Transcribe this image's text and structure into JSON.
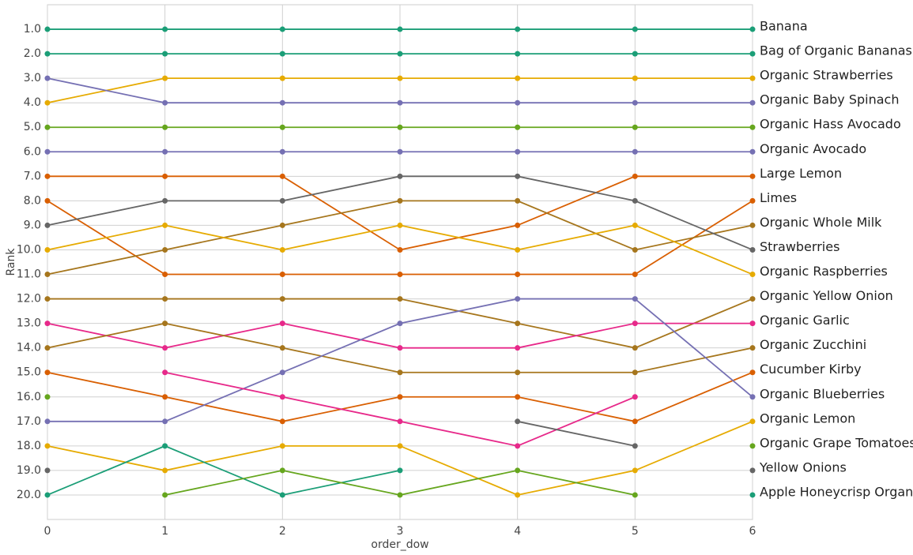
{
  "chart_data": {
    "type": "line",
    "xlabel": "order_dow",
    "ylabel": "Rank",
    "x": [
      0,
      1,
      2,
      3,
      4,
      5,
      6
    ],
    "xlim": [
      0,
      6
    ],
    "xticks": [
      0,
      1,
      2,
      3,
      4,
      5,
      6
    ],
    "ylim": [
      21,
      0
    ],
    "yticks": [
      {
        "value": 1,
        "label": "1.0"
      },
      {
        "value": 2,
        "label": "2.0"
      },
      {
        "value": 3,
        "label": "3.0"
      },
      {
        "value": 4,
        "label": "4.0"
      },
      {
        "value": 5,
        "label": "5.0"
      },
      {
        "value": 6,
        "label": "6.0"
      },
      {
        "value": 7,
        "label": "7.0"
      },
      {
        "value": 8,
        "label": "8.0"
      },
      {
        "value": 9,
        "label": "9.0"
      },
      {
        "value": 10,
        "label": "10.0"
      },
      {
        "value": 11,
        "label": "11.0"
      },
      {
        "value": 12,
        "label": "12.0"
      },
      {
        "value": 13,
        "label": "13.0"
      },
      {
        "value": 14,
        "label": "14.0"
      },
      {
        "value": 15,
        "label": "15.0"
      },
      {
        "value": 16,
        "label": "16.0"
      },
      {
        "value": 17,
        "label": "17.0"
      },
      {
        "value": 18,
        "label": "18.0"
      },
      {
        "value": 19,
        "label": "19.0"
      },
      {
        "value": 20,
        "label": "20.0"
      }
    ],
    "grid": true,
    "series": [
      {
        "name": "Banana",
        "color": "#1b9e77",
        "values": [
          1,
          1,
          1,
          1,
          1,
          1,
          1
        ]
      },
      {
        "name": "Bag of Organic Bananas",
        "color": "#1b9e77",
        "values": [
          2,
          2,
          2,
          2,
          2,
          2,
          2
        ]
      },
      {
        "name": "Organic Strawberries",
        "color": "#e6ab02",
        "values": [
          4,
          3,
          3,
          3,
          3,
          3,
          3
        ]
      },
      {
        "name": "Organic Baby Spinach",
        "color": "#7570b3",
        "values": [
          3,
          4,
          4,
          4,
          4,
          4,
          4
        ]
      },
      {
        "name": "Organic Hass Avocado",
        "color": "#66a61e",
        "values": [
          5,
          5,
          5,
          5,
          5,
          5,
          5
        ]
      },
      {
        "name": "Organic Avocado",
        "color": "#7570b3",
        "values": [
          6,
          6,
          6,
          6,
          6,
          6,
          6
        ]
      },
      {
        "name": "Large Lemon",
        "color": "#d95f02",
        "values": [
          7,
          7,
          7,
          10,
          9,
          7,
          7
        ]
      },
      {
        "name": "Limes",
        "color": "#d95f02",
        "values": [
          8,
          11,
          11,
          11,
          11,
          11,
          8
        ]
      },
      {
        "name": "Organic Whole Milk",
        "color": "#a6761d",
        "values": [
          11,
          10,
          9,
          8,
          8,
          10,
          9
        ]
      },
      {
        "name": "Strawberries",
        "color": "#666666",
        "values": [
          9,
          8,
          8,
          7,
          7,
          8,
          10
        ]
      },
      {
        "name": "Organic Raspberries",
        "color": "#e6ab02",
        "values": [
          10,
          9,
          10,
          9,
          10,
          9,
          11
        ]
      },
      {
        "name": "Organic Yellow Onion",
        "color": "#a6761d",
        "values": [
          12,
          12,
          12,
          12,
          13,
          14,
          12
        ]
      },
      {
        "name": "Organic Garlic",
        "color": "#e7298a",
        "values": [
          13,
          14,
          13,
          14,
          14,
          13,
          13
        ]
      },
      {
        "name": "Organic Zucchini",
        "color": "#a6761d",
        "values": [
          14,
          13,
          14,
          15,
          15,
          15,
          14
        ]
      },
      {
        "name": "Cucumber Kirby",
        "color": "#d95f02",
        "values": [
          15,
          16,
          17,
          16,
          16,
          17,
          15
        ]
      },
      {
        "name": "Organic Blueberries",
        "color": "#7570b3",
        "values": [
          17,
          17,
          15,
          13,
          12,
          12,
          16
        ]
      },
      {
        "name": "Organic Lemon",
        "color": "#e6ab02",
        "values": [
          18,
          19,
          18,
          18,
          20,
          19,
          17
        ]
      },
      {
        "name": "Organic Grape Tomatoes",
        "color": "#66a61e",
        "values": [
          16,
          null,
          null,
          null,
          null,
          null,
          18
        ]
      },
      {
        "name": "Yellow Onions",
        "color": "#666666",
        "values": [
          19,
          null,
          null,
          null,
          null,
          null,
          19
        ]
      },
      {
        "name": "Apple Honeycrisp Organic",
        "color": "#1b9e77",
        "values": [
          20,
          18,
          20,
          19,
          null,
          null,
          20
        ]
      },
      {
        "color": "#e7298a",
        "values": [
          null,
          15,
          16,
          17,
          18,
          16,
          null
        ]
      },
      {
        "color": "#666666",
        "values": [
          null,
          null,
          null,
          null,
          17,
          18,
          null
        ]
      },
      {
        "color": "#66a61e",
        "values": [
          null,
          20,
          19,
          20,
          19,
          20,
          null
        ]
      }
    ]
  }
}
